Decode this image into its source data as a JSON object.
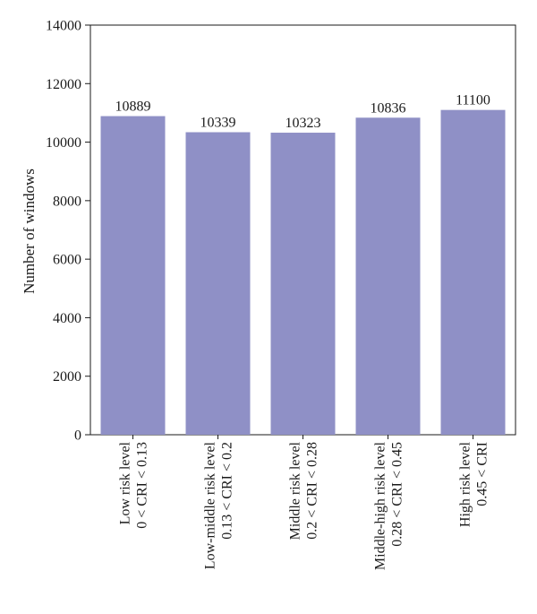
{
  "chart_data": {
    "type": "bar",
    "title": "",
    "xlabel": "",
    "ylabel": "Number of windows",
    "ylim": [
      0,
      14000
    ],
    "yticks": [
      0,
      2000,
      4000,
      6000,
      8000,
      10000,
      12000,
      14000
    ],
    "grid": false,
    "legend": "none",
    "categories": [
      [
        "Low risk level",
        "0 < CRI < 0.13"
      ],
      [
        "Low-middle risk level",
        "0.13 < CRI < 0.2"
      ],
      [
        "Middle risk level",
        "0.2 < CRI < 0.28"
      ],
      [
        "Middle-high risk level",
        "0.28 < CRI < 0.45"
      ],
      [
        "High risk level",
        "0.45 < CRI"
      ]
    ],
    "values": [
      10889,
      10339,
      10323,
      10836,
      11100
    ],
    "data_labels": [
      "10889",
      "10339",
      "10323",
      "10836",
      "11100"
    ],
    "colors": {
      "bar": "#8f90c6",
      "axis": "#1a1a1a"
    }
  }
}
